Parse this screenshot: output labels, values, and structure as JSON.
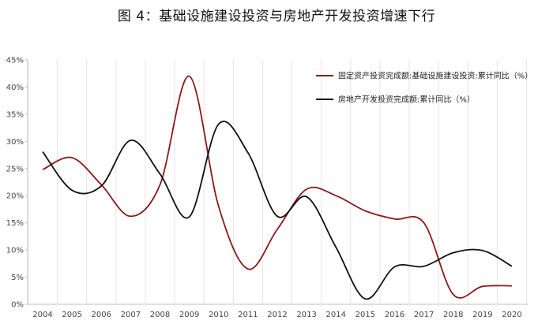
{
  "chart_data": {
    "type": "line",
    "title": "图 4：基础设施建设投资与房地产开发投资增速下行",
    "xlabel": "",
    "ylabel": "",
    "ylim": [
      0,
      45
    ],
    "yticks": [
      "0%",
      "5%",
      "10%",
      "15%",
      "20%",
      "25%",
      "30%",
      "35%",
      "40%",
      "45%"
    ],
    "ytick_values": [
      0,
      5,
      10,
      15,
      20,
      25,
      30,
      35,
      40,
      45
    ],
    "grid": "vertical",
    "legend_position": "top-right",
    "categories": [
      "2004",
      "2005",
      "2006",
      "2007",
      "2008",
      "2009",
      "2010",
      "2011",
      "2012",
      "2013",
      "2014",
      "2015",
      "2016",
      "2017",
      "2018",
      "2019",
      "2020"
    ],
    "series": [
      {
        "name": "固定资产投资完成额:基础设施建设投资:累计同比（%）",
        "color": "#8b1a1a",
        "values": [
          24.8,
          27.0,
          22.0,
          16.2,
          22.0,
          42.0,
          18.0,
          6.5,
          13.8,
          21.2,
          20.0,
          17.2,
          15.7,
          15.0,
          1.8,
          3.3,
          3.4
        ]
      },
      {
        "name": "房地产开发投资完成额:累计同比（%）",
        "color": "#111111",
        "values": [
          28.1,
          21.0,
          21.8,
          30.2,
          24.0,
          16.1,
          33.2,
          27.9,
          16.2,
          19.8,
          10.5,
          1.0,
          6.9,
          7.0,
          9.5,
          9.9,
          7.0
        ]
      }
    ]
  }
}
